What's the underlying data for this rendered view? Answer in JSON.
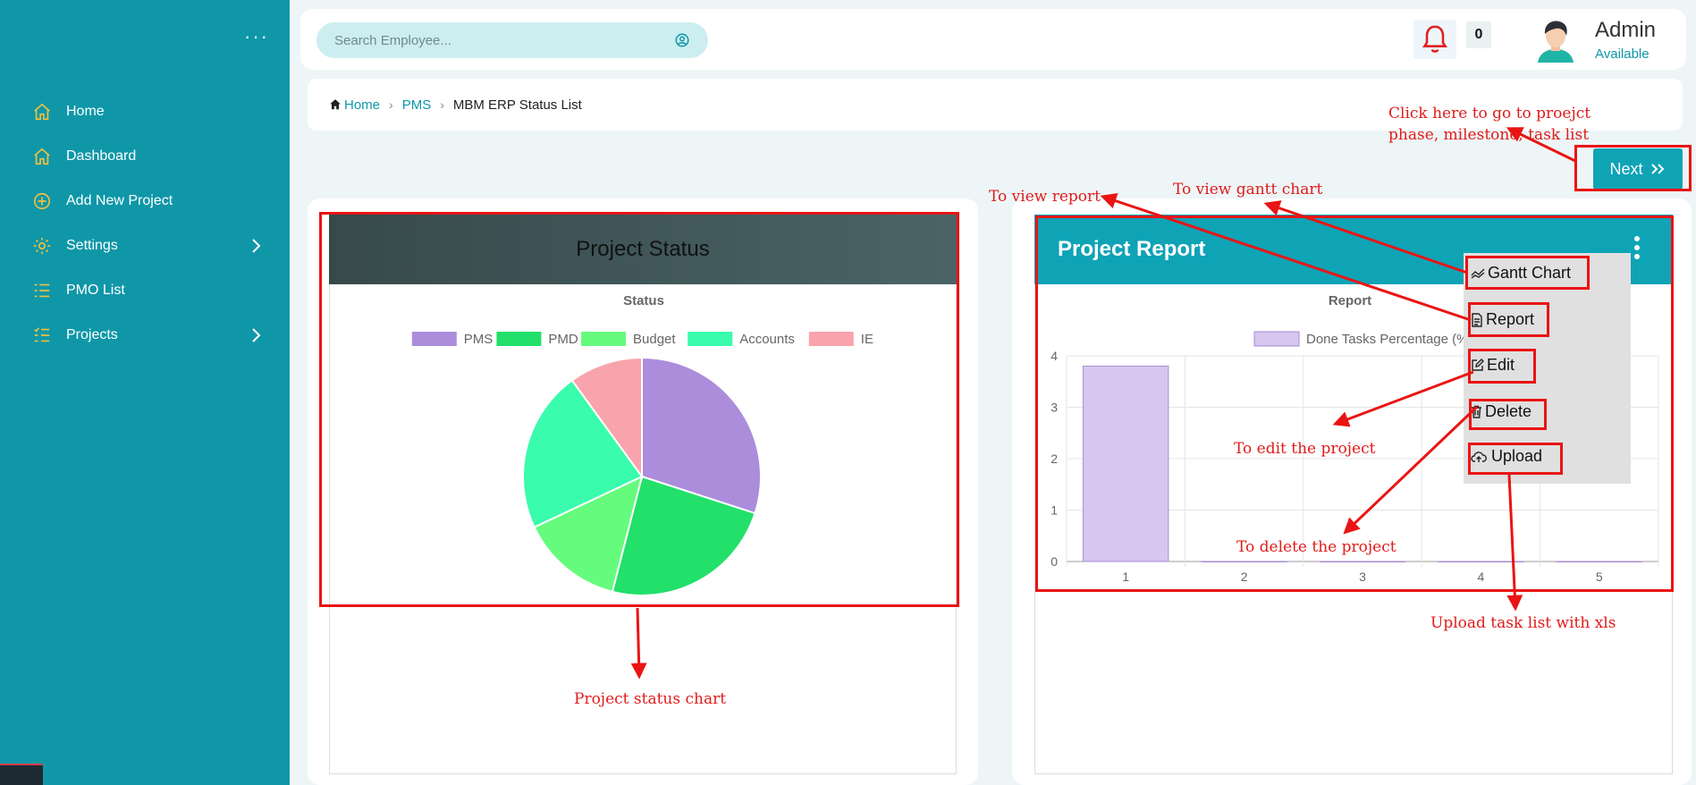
{
  "sidebar": {
    "items": [
      {
        "label": "Home",
        "icon": "home-icon"
      },
      {
        "label": "Dashboard",
        "icon": "home-icon"
      },
      {
        "label": "Add New Project",
        "icon": "plus-circle-icon"
      },
      {
        "label": "Settings",
        "icon": "gear-icon"
      },
      {
        "label": "PMO List",
        "icon": "list-icon"
      },
      {
        "label": "Projects",
        "icon": "checklist-icon"
      }
    ]
  },
  "header": {
    "search_placeholder": "Search Employee...",
    "notification_count": "0",
    "user_name": "Admin",
    "user_status": "Available"
  },
  "breadcrumb": {
    "home": "Home",
    "pms": "PMS",
    "current": "MBM ERP Status List"
  },
  "next_label": "Next",
  "left_card": {
    "title": "Project Status"
  },
  "right_card": {
    "title": "Project Report"
  },
  "menu": {
    "gantt": "Gantt Chart",
    "report": "Report",
    "edit": "Edit",
    "delete": "Delete",
    "upload": "Upload"
  },
  "annotations": {
    "next_hint_1": "Click here to go to proejct",
    "next_hint_2": "phase, milestone, task list",
    "view_report": "To view report",
    "view_gantt": "To view gantt chart",
    "edit_project": "To edit the project",
    "delete_project": "To delete the project",
    "upload_hint": "Upload task list with xls",
    "status_chart": "Project status chart"
  },
  "colors": {
    "sidebar": "#0f97a8",
    "accent": "#0fa3b6",
    "annotation": "#e01b1b"
  },
  "chart_data": [
    {
      "type": "pie",
      "title": "Status",
      "legend_position": "top",
      "labels": [
        "PMS",
        "PMD",
        "Budget",
        "Accounts",
        "IE"
      ],
      "values": [
        30,
        24,
        14,
        22,
        10
      ],
      "colors": [
        "#ab8ddc",
        "#22e06a",
        "#65fc7e",
        "#39fcac",
        "#f9a3ac"
      ]
    },
    {
      "type": "bar",
      "title": "Report",
      "legend_position": "top",
      "categories": [
        "1",
        "2",
        "3",
        "4",
        "5"
      ],
      "series": [
        {
          "name": "Done Tasks Percentage (%)",
          "values": [
            3.8,
            0,
            0,
            0,
            0
          ]
        }
      ],
      "ylim": [
        0,
        4
      ],
      "yticks": [
        "0",
        "1",
        "2",
        "3",
        "4"
      ],
      "grid": true,
      "color": "#d7c7ee"
    }
  ]
}
